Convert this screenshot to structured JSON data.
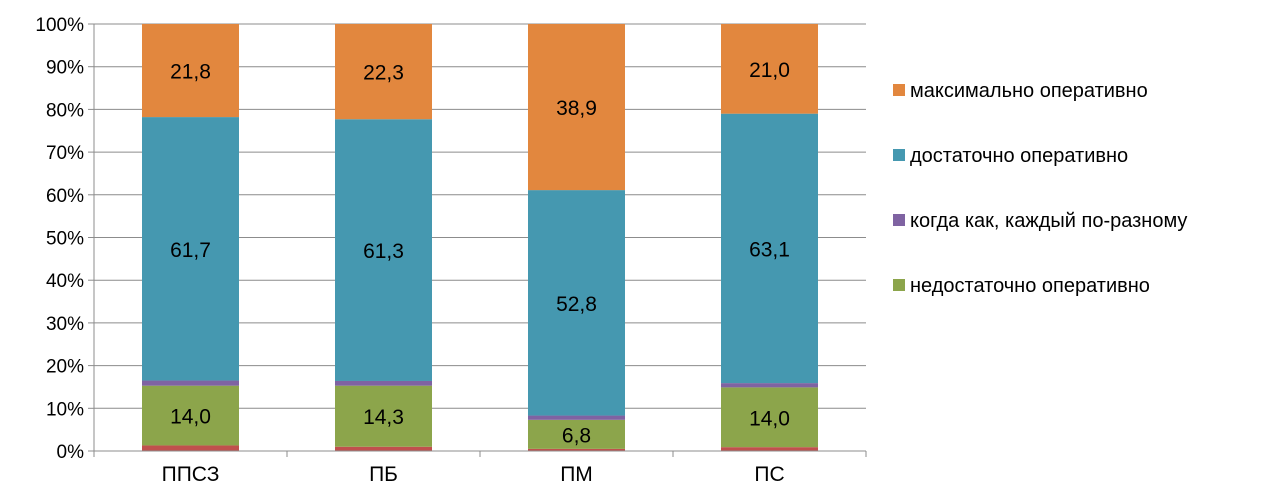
{
  "chart_data": {
    "type": "bar",
    "stacked": true,
    "percent_stacked": true,
    "categories": [
      "ППСЗ",
      "ПБ",
      "ПМ",
      "ПС"
    ],
    "series": [
      {
        "name": "",
        "color": "#c0504d",
        "values": [
          1.3,
          1.0,
          0.5,
          0.9
        ],
        "labels": [
          "",
          "",
          "",
          ""
        ]
      },
      {
        "name": "недостаточно оперативно",
        "color": "#8ca54b",
        "values": [
          14.0,
          14.3,
          6.8,
          14.0
        ],
        "labels": [
          "14,0",
          "14,3",
          "6,8",
          "14,0"
        ]
      },
      {
        "name": "когда как, каждый по-разному",
        "color": "#7f63a2",
        "values": [
          1.2,
          1.1,
          1.0,
          1.0
        ],
        "labels": [
          "",
          "",
          "",
          ""
        ]
      },
      {
        "name": "достаточно оперативно",
        "color": "#4598b0",
        "values": [
          61.7,
          61.3,
          52.8,
          63.1
        ],
        "labels": [
          "61,7",
          "61,3",
          "52,8",
          "63,1"
        ]
      },
      {
        "name": "максимально оперативно",
        "color": "#e2873e",
        "values": [
          21.8,
          22.3,
          38.9,
          21.0
        ],
        "labels": [
          "21,8",
          "22,3",
          "38,9",
          "21,0"
        ]
      }
    ],
    "y_ticks": [
      "0%",
      "10%",
      "20%",
      "30%",
      "40%",
      "50%",
      "60%",
      "70%",
      "80%",
      "90%",
      "100%"
    ],
    "ylim": [
      0,
      100
    ],
    "grid": true,
    "legend_position": "right",
    "legend_order": [
      "максимально оперативно",
      "достаточно оперативно",
      "когда как, каждый по-разному",
      "недостаточно оперативно"
    ]
  }
}
